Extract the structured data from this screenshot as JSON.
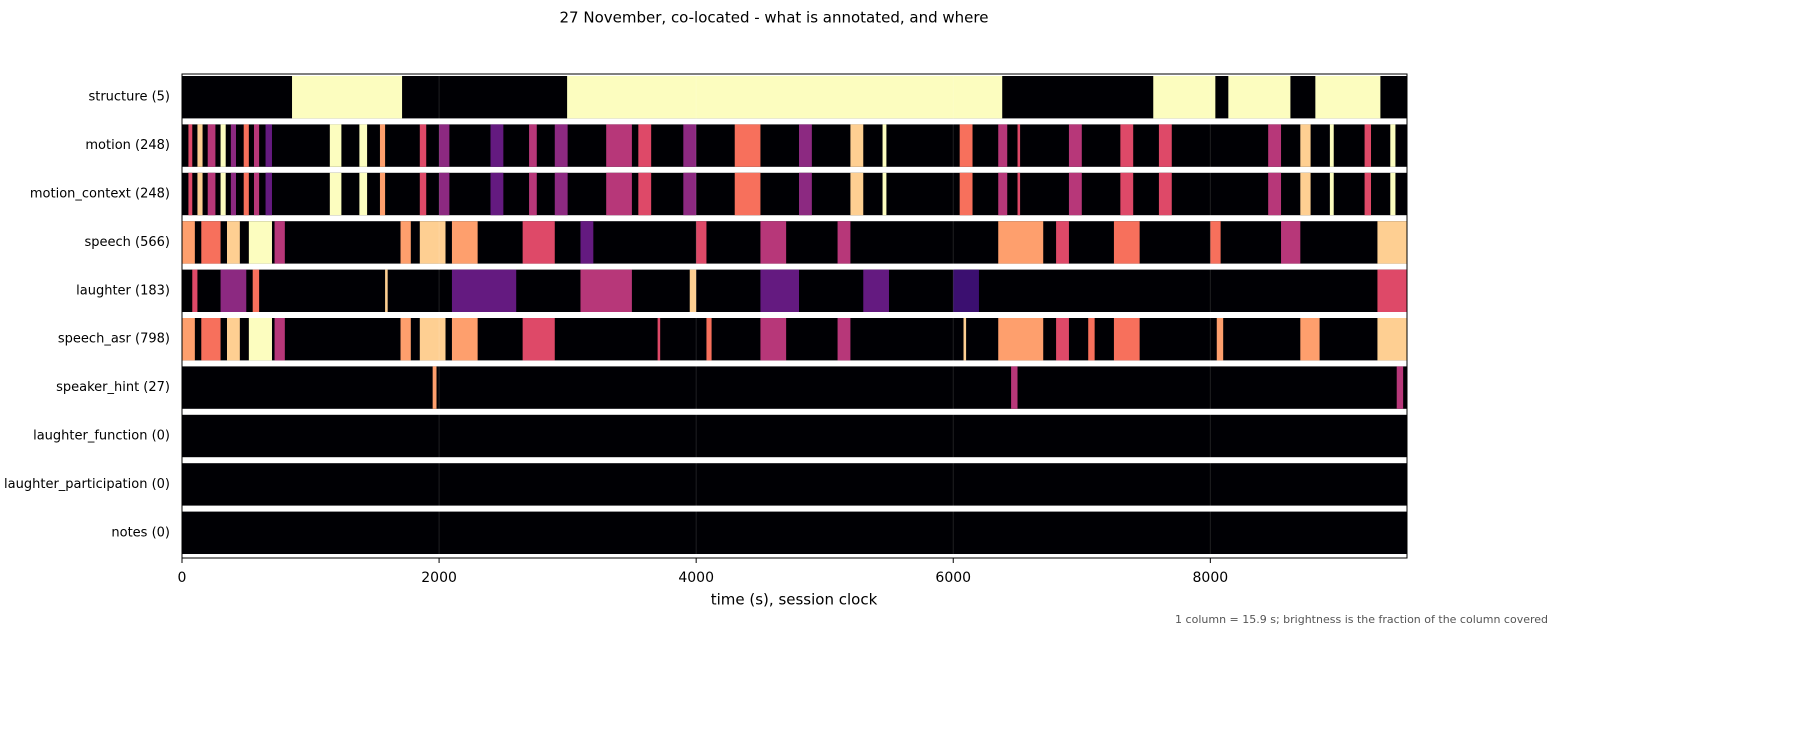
{
  "chart_data": {
    "type": "heatmap",
    "title": "27 November, co-located - what is annotated, and where",
    "xlabel": "time (s), session clock",
    "footnote": "1 column = 15.9 s; brightness is the fraction of the column covered",
    "colormap": "magma",
    "xlim": [
      0,
      9530
    ],
    "xticks": [
      0,
      2000,
      4000,
      6000,
      8000
    ],
    "grid": true,
    "rows": [
      {
        "label": "structure  (5)",
        "segments": [
          [
            856,
            1712,
            1
          ],
          [
            2996,
            6381,
            1
          ],
          [
            7556,
            8039,
            1
          ],
          [
            8140,
            8623,
            1
          ],
          [
            8817,
            9323,
            1
          ]
        ]
      },
      {
        "label": "motion  (248)",
        "segments": [
          [
            50,
            80,
            0.6
          ],
          [
            120,
            160,
            0.9
          ],
          [
            200,
            260,
            0.5
          ],
          [
            300,
            340,
            1
          ],
          [
            380,
            420,
            0.4
          ],
          [
            480,
            520,
            0.7
          ],
          [
            560,
            600,
            0.5
          ],
          [
            650,
            700,
            0.3
          ],
          [
            1150,
            1240,
            1
          ],
          [
            1380,
            1440,
            1
          ],
          [
            1540,
            1580,
            0.8
          ],
          [
            1850,
            1900,
            0.6
          ],
          [
            2000,
            2080,
            0.4
          ],
          [
            2400,
            2500,
            0.3
          ],
          [
            2700,
            2760,
            0.5
          ],
          [
            2900,
            3000,
            0.4
          ],
          [
            3300,
            3500,
            0.5
          ],
          [
            3550,
            3650,
            0.6
          ],
          [
            3900,
            4000,
            0.4
          ],
          [
            4300,
            4500,
            0.7
          ],
          [
            4800,
            4900,
            0.4
          ],
          [
            5200,
            5300,
            0.9
          ],
          [
            5450,
            5480,
            1
          ],
          [
            6050,
            6150,
            0.7
          ],
          [
            6350,
            6420,
            0.5
          ],
          [
            6500,
            6520,
            0.6
          ],
          [
            6900,
            7000,
            0.5
          ],
          [
            7300,
            7400,
            0.6
          ],
          [
            7600,
            7700,
            0.6
          ],
          [
            8450,
            8550,
            0.5
          ],
          [
            8700,
            8780,
            0.9
          ],
          [
            8930,
            8960,
            1
          ],
          [
            9200,
            9250,
            0.6
          ],
          [
            9400,
            9440,
            1
          ]
        ]
      },
      {
        "label": "motion_context  (248)",
        "segments": [
          [
            50,
            80,
            0.6
          ],
          [
            120,
            160,
            0.9
          ],
          [
            200,
            260,
            0.5
          ],
          [
            300,
            340,
            1
          ],
          [
            380,
            420,
            0.4
          ],
          [
            480,
            520,
            0.7
          ],
          [
            560,
            600,
            0.5
          ],
          [
            650,
            700,
            0.3
          ],
          [
            1150,
            1240,
            1
          ],
          [
            1380,
            1440,
            1
          ],
          [
            1540,
            1580,
            0.8
          ],
          [
            1850,
            1900,
            0.6
          ],
          [
            2000,
            2080,
            0.4
          ],
          [
            2400,
            2500,
            0.3
          ],
          [
            2700,
            2760,
            0.5
          ],
          [
            2900,
            3000,
            0.4
          ],
          [
            3300,
            3500,
            0.5
          ],
          [
            3550,
            3650,
            0.6
          ],
          [
            3900,
            4000,
            0.4
          ],
          [
            4300,
            4500,
            0.7
          ],
          [
            4800,
            4900,
            0.4
          ],
          [
            5200,
            5300,
            0.9
          ],
          [
            5450,
            5480,
            1
          ],
          [
            6050,
            6150,
            0.7
          ],
          [
            6350,
            6420,
            0.5
          ],
          [
            6500,
            6520,
            0.6
          ],
          [
            6900,
            7000,
            0.5
          ],
          [
            7300,
            7400,
            0.6
          ],
          [
            7600,
            7700,
            0.6
          ],
          [
            8450,
            8550,
            0.5
          ],
          [
            8700,
            8780,
            0.9
          ],
          [
            8930,
            8960,
            1
          ],
          [
            9200,
            9250,
            0.6
          ],
          [
            9400,
            9440,
            1
          ]
        ]
      },
      {
        "label": "speech  (566)",
        "segments": [
          [
            0,
            100,
            0.8
          ],
          [
            150,
            300,
            0.7
          ],
          [
            350,
            450,
            0.9
          ],
          [
            520,
            700,
            1
          ],
          [
            720,
            800,
            0.5
          ],
          [
            1700,
            1780,
            0.8
          ],
          [
            1850,
            2050,
            0.9
          ],
          [
            2100,
            2300,
            0.8
          ],
          [
            2650,
            2900,
            0.6
          ],
          [
            3100,
            3200,
            0.3
          ],
          [
            4000,
            4080,
            0.6
          ],
          [
            4500,
            4700,
            0.5
          ],
          [
            5100,
            5200,
            0.5
          ],
          [
            6350,
            6700,
            0.8
          ],
          [
            6800,
            6900,
            0.6
          ],
          [
            7250,
            7450,
            0.7
          ],
          [
            8000,
            8080,
            0.7
          ],
          [
            8550,
            8700,
            0.5
          ],
          [
            9300,
            9530,
            0.9
          ]
        ]
      },
      {
        "label": "laughter  (183)",
        "segments": [
          [
            80,
            120,
            0.6
          ],
          [
            300,
            500,
            0.4
          ],
          [
            550,
            600,
            0.7
          ],
          [
            1580,
            1600,
            0.9
          ],
          [
            2100,
            2600,
            0.3
          ],
          [
            3100,
            3500,
            0.5
          ],
          [
            3950,
            4000,
            0.9
          ],
          [
            4500,
            4800,
            0.3
          ],
          [
            5300,
            5500,
            0.3
          ],
          [
            6000,
            6200,
            0.2
          ],
          [
            9300,
            9530,
            0.6
          ]
        ]
      },
      {
        "label": "speech_asr  (798)",
        "segments": [
          [
            0,
            100,
            0.8
          ],
          [
            150,
            300,
            0.7
          ],
          [
            350,
            450,
            0.9
          ],
          [
            520,
            700,
            1
          ],
          [
            720,
            800,
            0.5
          ],
          [
            1700,
            1780,
            0.8
          ],
          [
            1850,
            2050,
            0.9
          ],
          [
            2100,
            2300,
            0.8
          ],
          [
            2650,
            2900,
            0.6
          ],
          [
            3700,
            3720,
            0.6
          ],
          [
            4080,
            4120,
            0.7
          ],
          [
            4500,
            4700,
            0.5
          ],
          [
            5100,
            5200,
            0.5
          ],
          [
            6080,
            6100,
            0.9
          ],
          [
            6350,
            6700,
            0.8
          ],
          [
            6800,
            6900,
            0.6
          ],
          [
            7050,
            7100,
            0.7
          ],
          [
            7250,
            7450,
            0.7
          ],
          [
            8050,
            8100,
            0.8
          ],
          [
            8700,
            8850,
            0.8
          ],
          [
            9300,
            9530,
            0.9
          ]
        ]
      },
      {
        "label": "speaker_hint  (27)",
        "segments": [
          [
            1950,
            1980,
            0.8
          ],
          [
            6450,
            6500,
            0.5
          ],
          [
            9450,
            9500,
            0.5
          ]
        ]
      },
      {
        "label": "laughter_function  (0)",
        "segments": []
      },
      {
        "label": "laughter_participation  (0)",
        "segments": []
      },
      {
        "label": "notes  (0)",
        "segments": []
      }
    ]
  }
}
